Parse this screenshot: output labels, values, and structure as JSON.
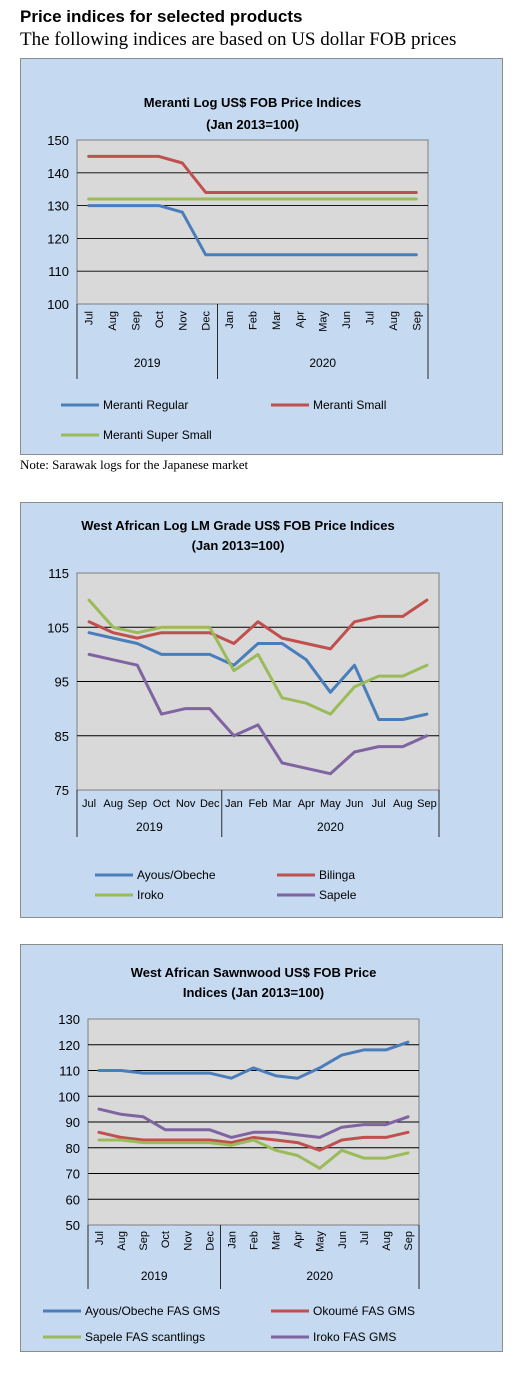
{
  "heading": "Price indices for selected products",
  "subheading": "The following indices are based on US dollar FOB prices",
  "note": "Note: Sarawak logs for the Japanese market",
  "colors": {
    "blue": "#4a7ebb",
    "red": "#c0504d",
    "green": "#9bbb59",
    "purple": "#8064a2",
    "panel": "#c5d9f1",
    "plot": "#d9d9d9"
  },
  "chart_data": [
    {
      "type": "line",
      "title": [
        "Meranti Log US$ FOB Price Indices",
        "(Jan 2013=100)"
      ],
      "categories": [
        "Jul",
        "Aug",
        "Sep",
        "Oct",
        "Nov",
        "Dec",
        "Jan",
        "Feb",
        "Mar",
        "Apr",
        "May",
        "Jun",
        "Jul",
        "Aug",
        "Sep"
      ],
      "years": [
        "2019",
        "2020"
      ],
      "ylim": [
        100,
        150
      ],
      "yticks": [
        "100",
        "110",
        "120",
        "130",
        "140",
        "150"
      ],
      "series": [
        {
          "name": "Meranti Regular",
          "color": "#4a7ebb",
          "values": [
            130,
            130,
            130,
            130,
            128,
            115,
            115,
            115,
            115,
            115,
            115,
            115,
            115,
            115,
            115
          ]
        },
        {
          "name": "Meranti Small",
          "color": "#c0504d",
          "values": [
            145,
            145,
            145,
            145,
            143,
            134,
            134,
            134,
            134,
            134,
            134,
            134,
            134,
            134,
            134
          ]
        },
        {
          "name": "Meranti Super Small",
          "color": "#9bbb59",
          "values": [
            132,
            132,
            132,
            132,
            132,
            132,
            132,
            132,
            132,
            132,
            132,
            132,
            132,
            132,
            132
          ]
        }
      ]
    },
    {
      "type": "line",
      "title": [
        "West African Log LM Grade US$ FOB Price Indices",
        "(Jan 2013=100)"
      ],
      "categories": [
        "Jul",
        "Aug",
        "Sep",
        "Oct",
        "Nov",
        "Dec",
        "Jan",
        "Feb",
        "Mar",
        "Apr",
        "May",
        "Jun",
        "Jul",
        "Aug",
        "Sep"
      ],
      "years": [
        "2019",
        "2020"
      ],
      "ylim": [
        75,
        115
      ],
      "yticks": [
        "75",
        "85",
        "95",
        "105",
        "115"
      ],
      "series": [
        {
          "name": "Ayous/Obeche",
          "color": "#4a7ebb",
          "values": [
            104,
            103,
            102,
            100,
            100,
            100,
            98,
            102,
            102,
            99,
            93,
            98,
            88,
            88,
            89
          ]
        },
        {
          "name": "Bilinga",
          "color": "#c0504d",
          "values": [
            106,
            104,
            103,
            104,
            104,
            104,
            102,
            106,
            103,
            102,
            101,
            106,
            107,
            107,
            110
          ]
        },
        {
          "name": "Iroko",
          "color": "#9bbb59",
          "values": [
            110,
            105,
            104,
            105,
            105,
            105,
            97,
            100,
            92,
            91,
            89,
            94,
            96,
            96,
            98
          ]
        },
        {
          "name": "Sapele",
          "color": "#8064a2",
          "values": [
            100,
            99,
            98,
            89,
            90,
            90,
            85,
            87,
            80,
            79,
            78,
            82,
            83,
            83,
            85
          ]
        }
      ]
    },
    {
      "type": "line",
      "title": [
        "West African Sawnwood US$ FOB Price",
        "Indices (Jan 2013=100)"
      ],
      "categories": [
        "Jul",
        "Aug",
        "Sep",
        "Oct",
        "Nov",
        "Dec",
        "Jan",
        "Feb",
        "Mar",
        "Apr",
        "May",
        "Jun",
        "Jul",
        "Aug",
        "Sep"
      ],
      "years": [
        "2019",
        "2020"
      ],
      "ylim": [
        50,
        130
      ],
      "yticks": [
        "50",
        "60",
        "70",
        "80",
        "90",
        "100",
        "110",
        "120",
        "130"
      ],
      "series": [
        {
          "name": "Ayous/Obeche FAS GMS",
          "color": "#4a7ebb",
          "values": [
            110,
            110,
            109,
            109,
            109,
            109,
            107,
            111,
            108,
            107,
            111,
            116,
            118,
            118,
            121
          ]
        },
        {
          "name": "Okoumé FAS GMS",
          "color": "#c0504d",
          "values": [
            86,
            84,
            83,
            83,
            83,
            83,
            82,
            84,
            83,
            82,
            79,
            83,
            84,
            84,
            86
          ]
        },
        {
          "name": "Sapele FAS scantlings",
          "color": "#9bbb59",
          "values": [
            83,
            83,
            82,
            82,
            82,
            82,
            81,
            83,
            79,
            77,
            72,
            79,
            76,
            76,
            78
          ]
        },
        {
          "name": "Iroko FAS GMS",
          "color": "#8064a2",
          "values": [
            95,
            93,
            92,
            87,
            87,
            87,
            84,
            86,
            86,
            85,
            84,
            88,
            89,
            89,
            92
          ]
        }
      ]
    }
  ]
}
